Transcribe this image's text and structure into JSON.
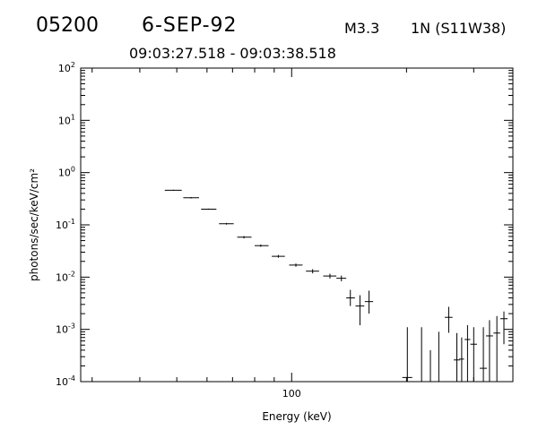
{
  "header": {
    "flare_id": "05200",
    "date": "6-SEP-92",
    "flare_class": "M3.3",
    "location": "1N (S11W38)",
    "time_range": "09:03:27.518 - 09:03:38.518"
  },
  "chart_data": {
    "type": "scatter",
    "title": "",
    "xlabel": "Energy (keV)",
    "ylabel": "photons/sec/keV/cm²",
    "xscale": "log",
    "yscale": "log",
    "xlim": [
      28,
      380
    ],
    "ylim": [
      0.0001,
      100
    ],
    "x_tick_labels": [
      "100"
    ],
    "y_tick_labels": [
      {
        "base": "10",
        "exp": "-4",
        "value": 0.0001
      },
      {
        "base": "10",
        "exp": "-3",
        "value": 0.001
      },
      {
        "base": "10",
        "exp": "-2",
        "value": 0.01
      },
      {
        "base": "10",
        "exp": "-1",
        "value": 0.1
      },
      {
        "base": "10",
        "exp": "0",
        "value": 1
      },
      {
        "base": "10",
        "exp": "1",
        "value": 10
      },
      {
        "base": "10",
        "exp": "2",
        "value": 100
      }
    ],
    "grid": false,
    "marker": "error-bar cross",
    "points": [
      {
        "x": 49.0,
        "x_lo": 46.5,
        "x_hi": 51.5,
        "y": 0.46,
        "y_lo": 0.45,
        "y_hi": 0.47
      },
      {
        "x": 54.5,
        "x_lo": 52.0,
        "x_hi": 57.2,
        "y": 0.33,
        "y_lo": 0.32,
        "y_hi": 0.34
      },
      {
        "x": 60.6,
        "x_lo": 57.9,
        "x_hi": 63.5,
        "y": 0.2,
        "y_lo": 0.195,
        "y_hi": 0.205
      },
      {
        "x": 67.5,
        "x_lo": 64.5,
        "x_hi": 70.5,
        "y": 0.105,
        "y_lo": 0.101,
        "y_hi": 0.109
      },
      {
        "x": 75.0,
        "x_lo": 72.0,
        "x_hi": 78.5,
        "y": 0.058,
        "y_lo": 0.055,
        "y_hi": 0.061
      },
      {
        "x": 83.0,
        "x_lo": 80.0,
        "x_hi": 87.0,
        "y": 0.04,
        "y_lo": 0.038,
        "y_hi": 0.042
      },
      {
        "x": 92.3,
        "x_lo": 88.7,
        "x_hi": 96.0,
        "y": 0.025,
        "y_lo": 0.0235,
        "y_hi": 0.0265
      },
      {
        "x": 102.6,
        "x_lo": 98.5,
        "x_hi": 106.8,
        "y": 0.017,
        "y_lo": 0.0158,
        "y_hi": 0.0182
      },
      {
        "x": 113.5,
        "x_lo": 109.0,
        "x_hi": 118.0,
        "y": 0.013,
        "y_lo": 0.0118,
        "y_hi": 0.0142
      },
      {
        "x": 126.0,
        "x_lo": 121.0,
        "x_hi": 131.0,
        "y": 0.0105,
        "y_lo": 0.0094,
        "y_hi": 0.0116
      },
      {
        "x": 135.0,
        "x_lo": 131.0,
        "x_hi": 139.0,
        "y": 0.0095,
        "y_lo": 0.0083,
        "y_hi": 0.0107
      },
      {
        "x": 142.5,
        "x_lo": 139.0,
        "x_hi": 146.5,
        "y": 0.004,
        "y_lo": 0.0028,
        "y_hi": 0.0057
      },
      {
        "x": 151.0,
        "x_lo": 147.0,
        "x_hi": 155.0,
        "y": 0.0028,
        "y_lo": 0.0012,
        "y_hi": 0.0045
      },
      {
        "x": 159.5,
        "x_lo": 155.5,
        "x_hi": 163.5,
        "y": 0.0034,
        "y_lo": 0.002,
        "y_hi": 0.0055
      },
      {
        "x": 201.0,
        "x_lo": 195.0,
        "x_hi": 207.0,
        "y": 0.00012,
        "y_lo": 0.0001,
        "y_hi": 0.0011
      },
      {
        "x": 219.0,
        "x_lo": 216.0,
        "x_hi": 222.0,
        "y": 0.0001,
        "y_lo": 0.0001,
        "y_hi": 0.0011
      },
      {
        "x": 231.0,
        "x_lo": 228.0,
        "x_hi": 234.0,
        "y": 0.0001,
        "y_lo": 0.0001,
        "y_hi": 0.0004
      },
      {
        "x": 243.0,
        "x_lo": 240.0,
        "x_hi": 246.0,
        "y": 0.0001,
        "y_lo": 0.0001,
        "y_hi": 0.0009
      },
      {
        "x": 258.0,
        "x_lo": 252.0,
        "x_hi": 264.0,
        "y": 0.0017,
        "y_lo": 0.00086,
        "y_hi": 0.0027
      },
      {
        "x": 271.0,
        "x_lo": 266.0,
        "x_hi": 276.0,
        "y": 0.00026,
        "y_lo": 0.0001,
        "y_hi": 0.00085
      },
      {
        "x": 279.0,
        "x_lo": 275.0,
        "x_hi": 283.0,
        "y": 0.00027,
        "y_lo": 0.0001,
        "y_hi": 0.0007
      },
      {
        "x": 289.0,
        "x_lo": 284.0,
        "x_hi": 294.0,
        "y": 0.00064,
        "y_lo": 0.0001,
        "y_hi": 0.0012
      },
      {
        "x": 300.0,
        "x_lo": 294.0,
        "x_hi": 306.0,
        "y": 0.00052,
        "y_lo": 0.0001,
        "y_hi": 0.0011
      },
      {
        "x": 318.0,
        "x_lo": 311.0,
        "x_hi": 325.0,
        "y": 0.00018,
        "y_lo": 0.0001,
        "y_hi": 0.0011
      },
      {
        "x": 330.0,
        "x_lo": 323.0,
        "x_hi": 337.0,
        "y": 0.00075,
        "y_lo": 0.0001,
        "y_hi": 0.0015
      },
      {
        "x": 345.0,
        "x_lo": 338.0,
        "x_hi": 352.0,
        "y": 0.00085,
        "y_lo": 0.0001,
        "y_hi": 0.0018
      },
      {
        "x": 360.0,
        "x_lo": 352.0,
        "x_hi": 368.0,
        "y": 0.0016,
        "y_lo": 0.00052,
        "y_hi": 0.0022
      }
    ]
  }
}
